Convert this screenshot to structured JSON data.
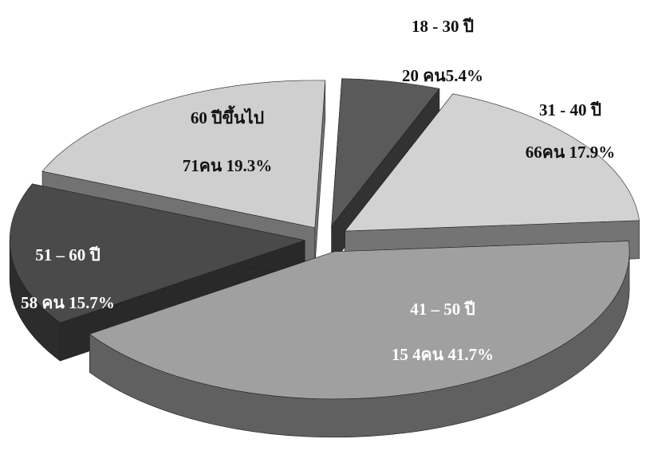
{
  "chart_data": {
    "type": "pie3d",
    "categories": [
      "18 - 30 ปี",
      "31 - 40 ปี",
      "41 – 50 ปี",
      "51 – 60 ปี",
      "60 ปีขึ้นไป"
    ],
    "values": [
      5.4,
      17.9,
      41.7,
      15.7,
      19.3
    ],
    "value_labels": [
      "20 คน5.4%",
      "66คน 17.9%",
      "15 4คน 41.7%",
      "58 คน 15.7%",
      "71คน 19.3%"
    ],
    "colors": [
      "#5a5a5a",
      "#d2d2d2",
      "#a0a0a0",
      "#4a4a4a",
      "#cfcfcf"
    ]
  }
}
